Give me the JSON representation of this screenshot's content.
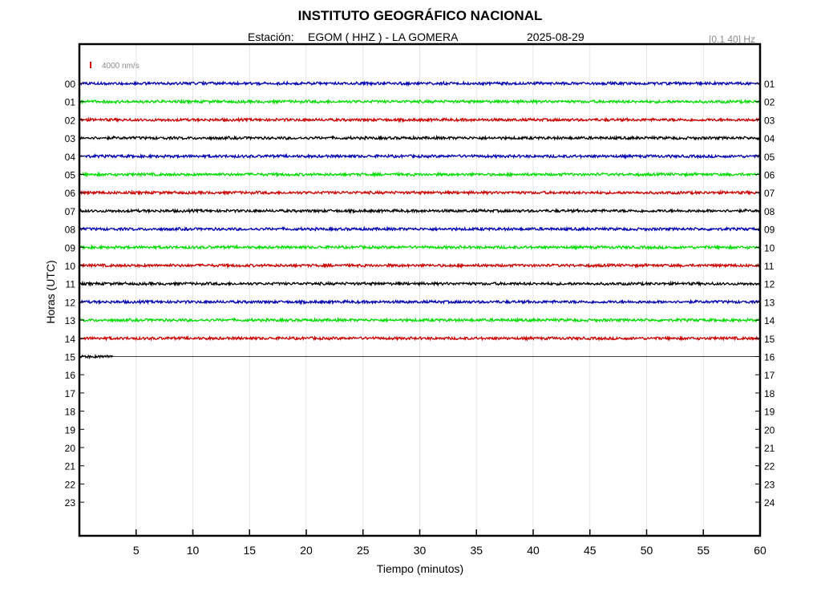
{
  "header": {
    "title": "INSTITUTO GEOGRÁFICO NACIONAL",
    "station_label": "Estación:",
    "station_value": "EGOM ( HHZ ) - LA GOMERA",
    "date": "2025-08-29",
    "filter": "[0.1 40] Hz"
  },
  "chart_data": {
    "type": "line",
    "title": "INSTITUTO GEOGRÁFICO NACIONAL",
    "xlabel": "Tiempo (minutos)",
    "ylabel": "Horas (UTC)",
    "xlim": [
      0,
      60
    ],
    "x_ticks": [
      5,
      10,
      15,
      20,
      25,
      30,
      35,
      40,
      45,
      50,
      55,
      60
    ],
    "left_ticks": [
      "00",
      "01",
      "02",
      "03",
      "04",
      "05",
      "06",
      "07",
      "08",
      "09",
      "10",
      "11",
      "12",
      "13",
      "14",
      "15",
      "16",
      "17",
      "18",
      "19",
      "20",
      "21",
      "22",
      "23"
    ],
    "right_ticks": [
      "01",
      "02",
      "03",
      "04",
      "05",
      "06",
      "07",
      "08",
      "09",
      "10",
      "11",
      "12",
      "13",
      "14",
      "15",
      "16",
      "17",
      "18",
      "19",
      "20",
      "21",
      "22",
      "23",
      "24"
    ],
    "scale_label": "4000 nm/s",
    "grid": "vertical",
    "series": [
      {
        "hour": "00",
        "color": "#0000b4",
        "coverage_minutes": [
          0,
          60
        ]
      },
      {
        "hour": "01",
        "color": "#00dd00",
        "coverage_minutes": [
          0,
          60
        ]
      },
      {
        "hour": "02",
        "color": "#cc0000",
        "coverage_minutes": [
          0,
          60
        ]
      },
      {
        "hour": "03",
        "color": "#000000",
        "coverage_minutes": [
          0,
          60
        ]
      },
      {
        "hour": "04",
        "color": "#0000b4",
        "coverage_minutes": [
          0,
          60
        ]
      },
      {
        "hour": "05",
        "color": "#00dd00",
        "coverage_minutes": [
          0,
          60
        ]
      },
      {
        "hour": "06",
        "color": "#cc0000",
        "coverage_minutes": [
          0,
          60
        ]
      },
      {
        "hour": "07",
        "color": "#000000",
        "coverage_minutes": [
          0,
          60
        ]
      },
      {
        "hour": "08",
        "color": "#0000b4",
        "coverage_minutes": [
          0,
          60
        ]
      },
      {
        "hour": "09",
        "color": "#00dd00",
        "coverage_minutes": [
          0,
          60
        ]
      },
      {
        "hour": "10",
        "color": "#cc0000",
        "coverage_minutes": [
          0,
          60
        ]
      },
      {
        "hour": "11",
        "color": "#000000",
        "coverage_minutes": [
          0,
          60
        ]
      },
      {
        "hour": "12",
        "color": "#0000b4",
        "coverage_minutes": [
          0,
          60
        ]
      },
      {
        "hour": "13",
        "color": "#00dd00",
        "coverage_minutes": [
          0,
          60
        ]
      },
      {
        "hour": "14",
        "color": "#cc0000",
        "coverage_minutes": [
          0,
          60
        ]
      },
      {
        "hour": "15",
        "color": "#000000",
        "coverage_minutes": [
          0,
          3
        ]
      }
    ]
  }
}
